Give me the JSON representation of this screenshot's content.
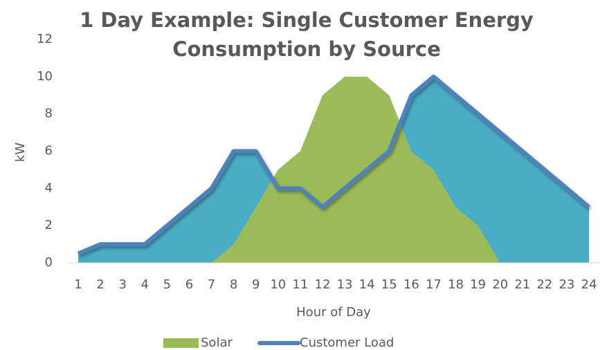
{
  "chart_data": {
    "type": "area",
    "title": "1 Day Example: Single Customer Energy Consumption by Source",
    "xlabel": "Hour of Day",
    "ylabel": "kW",
    "x": [
      1,
      2,
      3,
      4,
      5,
      6,
      7,
      8,
      9,
      10,
      11,
      12,
      13,
      14,
      15,
      16,
      17,
      18,
      19,
      20,
      21,
      22,
      23,
      24
    ],
    "xlim": [
      1,
      24
    ],
    "xticks": [
      1,
      2,
      3,
      4,
      5,
      6,
      7,
      8,
      9,
      10,
      11,
      12,
      13,
      14,
      15,
      16,
      17,
      18,
      19,
      20,
      21,
      22,
      23,
      24
    ],
    "ylim": [
      0,
      12
    ],
    "yticks": [
      0,
      2,
      4,
      6,
      8,
      10,
      12
    ],
    "legend": "bottom",
    "series": [
      {
        "name": "Solar",
        "color": "#9bbb59",
        "values": [
          0,
          0,
          0,
          0,
          0,
          0,
          0,
          1,
          3,
          5,
          6,
          9,
          10,
          10,
          9,
          6,
          5,
          3,
          2,
          0,
          0,
          0,
          0,
          0
        ]
      },
      {
        "name": "Customer Load",
        "color": "#4f81bd",
        "fill": "#4bacc6",
        "values": [
          0.5,
          1,
          1,
          1,
          2,
          3,
          4,
          6,
          6,
          4,
          4,
          3,
          4,
          5,
          6,
          9,
          10,
          9,
          8,
          7,
          6,
          5,
          4,
          3
        ]
      }
    ]
  }
}
